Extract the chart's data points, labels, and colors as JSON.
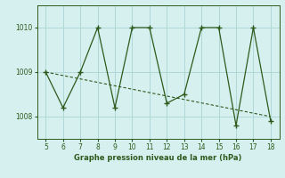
{
  "x": [
    5,
    6,
    7,
    8,
    9,
    10,
    11,
    12,
    13,
    14,
    15,
    16,
    17,
    18
  ],
  "y": [
    1009.0,
    1008.2,
    1009.0,
    1010.0,
    1008.2,
    1010.0,
    1010.0,
    1008.3,
    1008.5,
    1010.0,
    1010.0,
    1007.8,
    1010.0,
    1007.9
  ],
  "trend_x": [
    5,
    18
  ],
  "trend_y": [
    1009.0,
    1008.0
  ],
  "line_color": "#2d5a1b",
  "bg_color": "#d6f0f0",
  "xlabel": "Graphe pression niveau de la mer (hPa)",
  "ylim": [
    1007.5,
    1010.5
  ],
  "xlim": [
    4.5,
    18.5
  ],
  "yticks": [
    1008,
    1009,
    1010
  ],
  "xticks": [
    5,
    6,
    7,
    8,
    9,
    10,
    11,
    12,
    13,
    14,
    15,
    16,
    17,
    18
  ],
  "grid_color": "#b0d8d8",
  "marker": "+"
}
